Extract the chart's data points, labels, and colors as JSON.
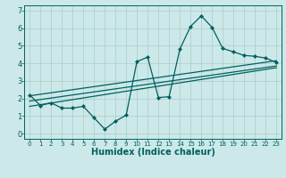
{
  "bg_color": "#cce8e8",
  "line_color": "#006060",
  "grid_color": "#aacccc",
  "xlabel": "Humidex (Indice chaleur)",
  "xlabel_fontsize": 7,
  "xlim": [
    -0.5,
    23.5
  ],
  "ylim": [
    -0.3,
    7.3
  ],
  "yticks": [
    0,
    1,
    2,
    3,
    4,
    5,
    6,
    7
  ],
  "xticks": [
    0,
    1,
    2,
    3,
    4,
    5,
    6,
    7,
    8,
    9,
    10,
    11,
    12,
    13,
    14,
    15,
    16,
    17,
    18,
    19,
    20,
    21,
    22,
    23
  ],
  "data_x": [
    0,
    1,
    2,
    3,
    4,
    5,
    6,
    7,
    8,
    9,
    10,
    11,
    12,
    13,
    14,
    15,
    16,
    17,
    18,
    19,
    20,
    21,
    22,
    23
  ],
  "data_y": [
    2.2,
    1.6,
    1.75,
    1.45,
    1.45,
    1.55,
    0.9,
    0.25,
    0.7,
    1.05,
    4.1,
    4.35,
    2.05,
    2.1,
    4.8,
    6.1,
    6.7,
    6.05,
    4.85,
    4.65,
    4.45,
    4.4,
    4.3,
    4.05
  ],
  "line1_x": [
    0,
    23
  ],
  "line1_y": [
    2.15,
    4.15
  ],
  "line2_x": [
    0,
    23
  ],
  "line2_y": [
    1.85,
    3.85
  ],
  "line3_x": [
    0,
    23
  ],
  "line3_y": [
    1.55,
    3.75
  ]
}
